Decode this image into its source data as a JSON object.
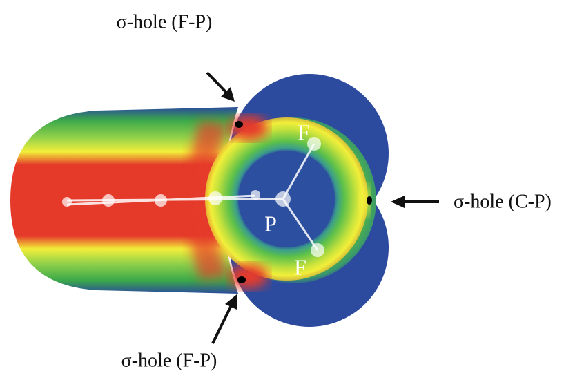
{
  "labels": {
    "top": "σ-hole (F-P)",
    "bottom": "σ-hole (F-P)",
    "right": "σ-hole (C-P)"
  },
  "atoms": [
    "F",
    "P",
    "F"
  ]
}
